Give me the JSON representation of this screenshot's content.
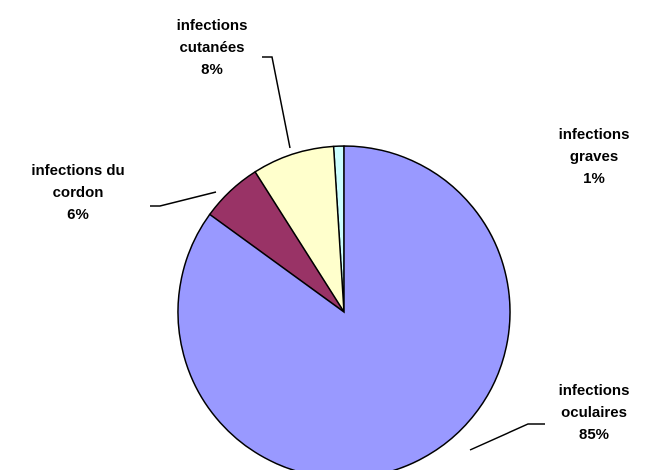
{
  "chart_data": {
    "type": "pie",
    "categories": [
      "infections oculaires",
      "infections du cordon",
      "infections cutanées",
      "infections graves"
    ],
    "values": [
      85,
      6,
      8,
      1
    ],
    "value_labels": [
      "85%",
      "6%",
      "8%",
      "1%"
    ],
    "colors": [
      "#9999ff",
      "#993366",
      "#ffffcc",
      "#ccffff"
    ]
  }
}
